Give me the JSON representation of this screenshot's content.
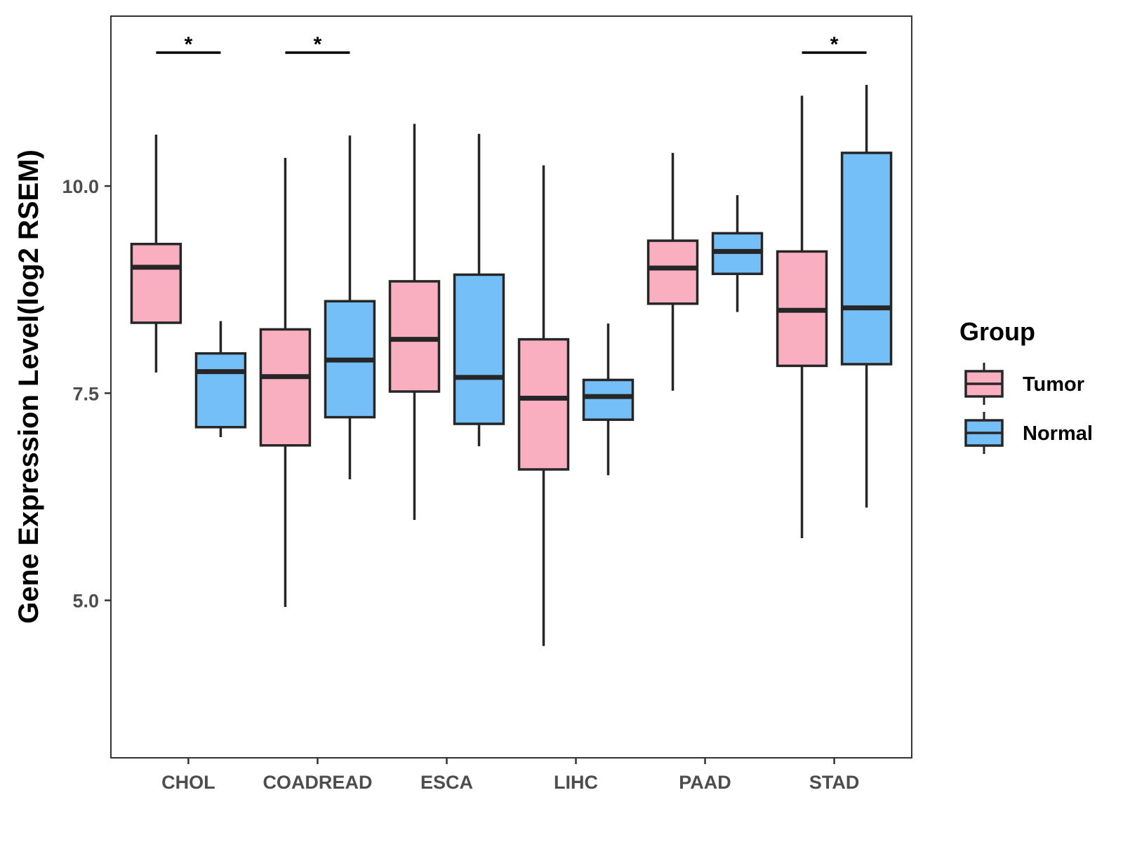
{
  "chart_data": {
    "type": "boxplot",
    "title": "",
    "xlabel": "",
    "ylabel": "Gene Expression Level(log2 RSEM)",
    "ylim": [
      3.1,
      12.05
    ],
    "yticks": [
      5.0,
      7.5,
      10.0
    ],
    "ytick_labels": [
      "5.0",
      "7.5",
      "10.0"
    ],
    "grid": false,
    "categories": [
      "CHOL",
      "COADREAD",
      "ESCA",
      "LIHC",
      "PAAD",
      "STAD"
    ],
    "legend": {
      "title": "Group",
      "position": "right",
      "entries": [
        {
          "label": "Tumor",
          "color": "#FAAFC0"
        },
        {
          "label": "Normal",
          "color": "#74BFF7"
        }
      ]
    },
    "series": [
      {
        "name": "Tumor",
        "color": "#FAAFC0",
        "boxes": [
          {
            "category": "CHOL",
            "whisker_low": 7.75,
            "q1": 8.35,
            "median": 9.02,
            "q3": 9.3,
            "whisker_high": 10.62
          },
          {
            "category": "COADREAD",
            "whisker_low": 4.92,
            "q1": 6.87,
            "median": 7.7,
            "q3": 8.27,
            "whisker_high": 10.34
          },
          {
            "category": "ESCA",
            "whisker_low": 5.97,
            "q1": 7.52,
            "median": 8.15,
            "q3": 8.85,
            "whisker_high": 10.75
          },
          {
            "category": "LIHC",
            "whisker_low": 4.45,
            "q1": 6.58,
            "median": 7.44,
            "q3": 8.15,
            "whisker_high": 10.25
          },
          {
            "category": "PAAD",
            "whisker_low": 7.53,
            "q1": 8.58,
            "median": 9.01,
            "q3": 9.34,
            "whisker_high": 10.4
          },
          {
            "category": "STAD",
            "whisker_low": 5.75,
            "q1": 7.83,
            "median": 8.5,
            "q3": 9.21,
            "whisker_high": 11.09
          }
        ]
      },
      {
        "name": "Normal",
        "color": "#74BFF7",
        "boxes": [
          {
            "category": "CHOL",
            "whisker_low": 6.97,
            "q1": 7.09,
            "median": 7.76,
            "q3": 7.98,
            "whisker_high": 8.37
          },
          {
            "category": "COADREAD",
            "whisker_low": 6.46,
            "q1": 7.21,
            "median": 7.9,
            "q3": 8.61,
            "whisker_high": 10.61
          },
          {
            "category": "ESCA",
            "whisker_low": 6.86,
            "q1": 7.13,
            "median": 7.69,
            "q3": 8.93,
            "whisker_high": 10.63
          },
          {
            "category": "LIHC",
            "whisker_low": 6.51,
            "q1": 7.18,
            "median": 7.46,
            "q3": 7.66,
            "whisker_high": 8.34
          },
          {
            "category": "PAAD",
            "whisker_low": 8.48,
            "q1": 8.94,
            "median": 9.21,
            "q3": 9.43,
            "whisker_high": 9.89
          },
          {
            "category": "STAD",
            "whisker_low": 6.12,
            "q1": 7.85,
            "median": 8.53,
            "q3": 10.4,
            "whisker_high": 11.22
          }
        ]
      }
    ],
    "annotations": [
      {
        "category": "CHOL",
        "text": "*"
      },
      {
        "category": "COADREAD",
        "text": "*"
      },
      {
        "category": "STAD",
        "text": "*"
      }
    ]
  }
}
